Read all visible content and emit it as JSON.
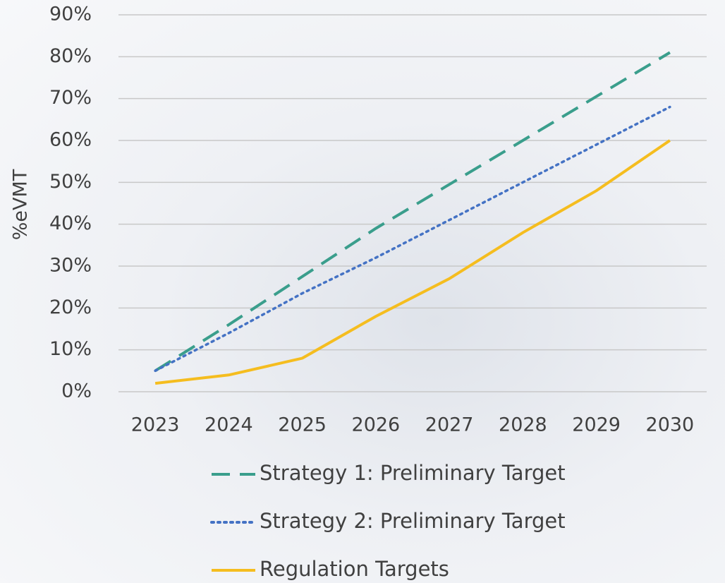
{
  "chart_data": {
    "type": "line",
    "y_label": "%eVMT",
    "categories": [
      "2023",
      "2024",
      "2025",
      "2026",
      "2027",
      "2028",
      "2029",
      "2030"
    ],
    "series": [
      {
        "name": "Strategy 1: Preliminary Target",
        "color": "#3a9e8c",
        "style": "dashed",
        "values": [
          5,
          16,
          27.5,
          39,
          49.5,
          60,
          70.5,
          81
        ]
      },
      {
        "name": "Strategy 2: Preliminary Target",
        "color": "#4472c4",
        "style": "dotted",
        "values": [
          5,
          14,
          23.5,
          32,
          41,
          50,
          59,
          68
        ]
      },
      {
        "name": "Regulation Targets",
        "color": "#f5bd1f",
        "style": "solid",
        "values": [
          2,
          4,
          8,
          18,
          27,
          38,
          48,
          60
        ]
      }
    ],
    "ylim": [
      0,
      90
    ],
    "yticks": [
      {
        "value": 0,
        "label": "0%"
      },
      {
        "value": 10,
        "label": "10%"
      },
      {
        "value": 20,
        "label": "20%"
      },
      {
        "value": 30,
        "label": "30%"
      },
      {
        "value": 40,
        "label": "40%"
      },
      {
        "value": 50,
        "label": "50%"
      },
      {
        "value": 60,
        "label": "60%"
      },
      {
        "value": 70,
        "label": "70%"
      },
      {
        "value": 80,
        "label": "80%"
      },
      {
        "value": 90,
        "label": "90%"
      }
    ],
    "grid": true,
    "legend": "bottom"
  }
}
